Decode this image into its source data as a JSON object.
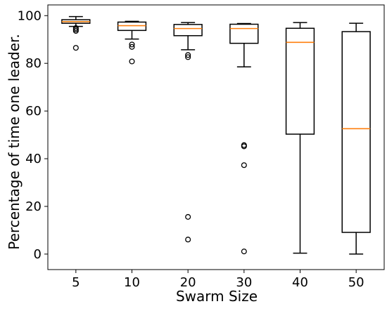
{
  "chart_data": {
    "type": "box",
    "title": "",
    "xlabel": "Swarm Size",
    "ylabel": "Percentage of time one leader.",
    "ylim": [
      -6.5,
      104.5
    ],
    "y_ticks": [
      0,
      20,
      40,
      60,
      80,
      100
    ],
    "grid": false,
    "legend": "none",
    "categories": [
      "5",
      "10",
      "20",
      "30",
      "40",
      "50"
    ],
    "boxes": [
      {
        "category": "5",
        "whisker_low": 95.5,
        "q1": 96.8,
        "median": 97.5,
        "q3": 98.3,
        "whisker_high": 99.6,
        "outliers": [
          94.8,
          94.2,
          93.6,
          86.5
        ]
      },
      {
        "category": "10",
        "whisker_low": 90.2,
        "q1": 93.8,
        "median": 95.8,
        "q3": 97.3,
        "whisker_high": 97.6,
        "outliers": [
          87.9,
          86.9,
          80.8
        ]
      },
      {
        "category": "20",
        "whisker_low": 85.7,
        "q1": 91.6,
        "median": 94.6,
        "q3": 96.3,
        "whisker_high": 97.1,
        "outliers": [
          83.5,
          82.6,
          15.6,
          6.1
        ]
      },
      {
        "category": "30",
        "whisker_low": 78.5,
        "q1": 88.4,
        "median": 94.6,
        "q3": 96.4,
        "whisker_high": 96.7,
        "outliers": [
          45.7,
          45.2,
          37.3,
          1.1
        ]
      },
      {
        "category": "40",
        "whisker_low": 0.4,
        "q1": 50.3,
        "median": 88.8,
        "q3": 94.7,
        "whisker_high": 97.1,
        "outliers": []
      },
      {
        "category": "50",
        "whisker_low": 0.0,
        "q1": 9.1,
        "median": 52.6,
        "q3": 93.3,
        "whisker_high": 96.8,
        "outliers": []
      }
    ],
    "colors": {
      "box": "#000000",
      "median": "#ff7f0e",
      "outlier": "#000000",
      "background": "#ffffff"
    }
  }
}
